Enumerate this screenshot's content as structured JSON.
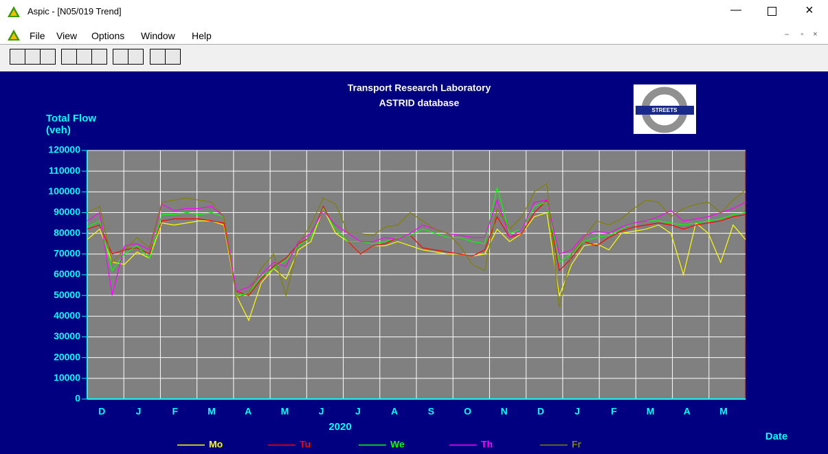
{
  "window": {
    "title": "Aspic - [N05/019 Trend]",
    "menu": [
      "File",
      "View",
      "Options",
      "Window",
      "Help"
    ]
  },
  "chart_data": {
    "type": "line",
    "title": "Transport Research Laboratory",
    "subtitle": "ASTRID database",
    "ylabel": "Total Flow",
    "ylabel_unit": "(veh)",
    "xlabel": "Date",
    "year_label": "2020",
    "logo_text": "STREETS",
    "month_labels": [
      "D",
      "J",
      "F",
      "M",
      "A",
      "M",
      "J",
      "J",
      "A",
      "S",
      "O",
      "N",
      "D",
      "J",
      "F",
      "M",
      "A",
      "M"
    ],
    "ylim": [
      0,
      120000
    ],
    "yticks": [
      0,
      10000,
      20000,
      30000,
      40000,
      50000,
      60000,
      70000,
      80000,
      90000,
      100000,
      110000,
      120000
    ],
    "grid": true,
    "series": [
      {
        "name": "Mo",
        "color": "#ffff00",
        "values": [
          77000,
          82000,
          66000,
          65000,
          71000,
          68000,
          85000,
          84000,
          85000,
          86000,
          86000,
          84000,
          50000,
          38000,
          56000,
          63000,
          58000,
          72000,
          76000,
          92000,
          80000,
          76000,
          70000,
          74000,
          74000,
          76000,
          74000,
          72000,
          71000,
          70000,
          70000,
          69000,
          70000,
          82000,
          76000,
          80000,
          88000,
          90000,
          50000,
          65000,
          74000,
          75000,
          72000,
          80000,
          81000,
          82000,
          84000,
          80000,
          60000,
          85000,
          80000,
          66000,
          84000,
          77000
        ]
      },
      {
        "name": "Tu",
        "color": "#ff0000",
        "values": [
          82000,
          84000,
          70000,
          72000,
          73000,
          70000,
          86000,
          87000,
          87000,
          87000,
          86000,
          85000,
          52000,
          50000,
          58000,
          64000,
          68000,
          75000,
          78000,
          93000,
          82000,
          76000,
          70000,
          74000,
          75000,
          78000,
          79000,
          73000,
          72000,
          71000,
          70000,
          69000,
          72000,
          88000,
          78000,
          80000,
          90000,
          96000,
          62000,
          68000,
          76000,
          74000,
          78000,
          81000,
          83000,
          84000,
          85000,
          84000,
          82000,
          84000,
          85000,
          86000,
          88000,
          89000
        ]
      },
      {
        "name": "We",
        "color": "#00ff00",
        "values": [
          83000,
          86000,
          62000,
          70000,
          74000,
          68000,
          89000,
          89000,
          90000,
          89000,
          90000,
          88000,
          50000,
          51000,
          59000,
          63000,
          67000,
          74000,
          78000,
          92000,
          82000,
          76000,
          76000,
          75000,
          76000,
          78000,
          79000,
          82000,
          80000,
          78000,
          78000,
          76000,
          75000,
          102000,
          80000,
          82000,
          93000,
          95000,
          66000,
          70000,
          76000,
          78000,
          79000,
          82000,
          85000,
          86000,
          86000,
          85000,
          84000,
          85000,
          86000,
          87000,
          89000,
          90000
        ]
      },
      {
        "name": "Th",
        "color": "#ff00ff",
        "values": [
          86000,
          90000,
          50000,
          74000,
          75000,
          72000,
          94000,
          91000,
          92000,
          92000,
          93000,
          88000,
          52000,
          54000,
          60000,
          66000,
          64000,
          76000,
          80000,
          91000,
          84000,
          80000,
          76000,
          76000,
          78000,
          77000,
          80000,
          84000,
          82000,
          80000,
          79000,
          78000,
          78000,
          96000,
          78000,
          82000,
          95000,
          96000,
          70000,
          72000,
          79000,
          81000,
          80000,
          83000,
          85000,
          86000,
          88000,
          91000,
          86000,
          87000,
          88000,
          90000,
          92000,
          95000
        ]
      },
      {
        "name": "Fr",
        "color": "#808000",
        "values": [
          90000,
          93000,
          66000,
          72000,
          78000,
          73000,
          95000,
          96000,
          97000,
          96000,
          95000,
          88000,
          49000,
          51000,
          63000,
          70000,
          50000,
          75000,
          84000,
          97000,
          94000,
          80000,
          80000,
          79000,
          83000,
          84000,
          90000,
          86000,
          82000,
          80000,
          74000,
          65000,
          62000,
          92000,
          82000,
          88000,
          100000,
          104000,
          44000,
          70000,
          78000,
          86000,
          84000,
          87000,
          92000,
          96000,
          95000,
          88000,
          92000,
          94000,
          95000,
          90000,
          96000,
          101000
        ]
      }
    ]
  }
}
